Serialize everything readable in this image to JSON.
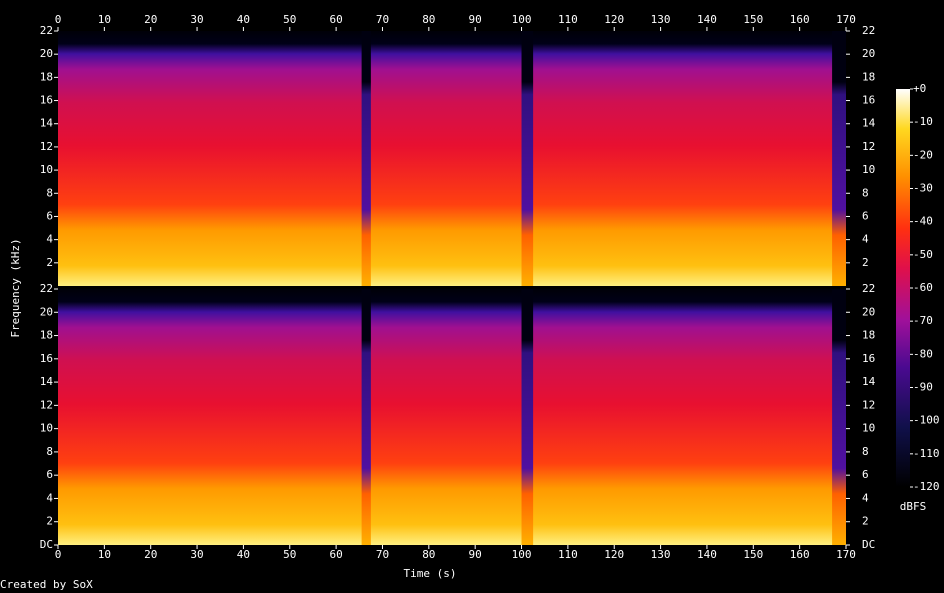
{
  "chart_data": {
    "type": "spectrogram",
    "x_label": "Time (s)",
    "y_label": "Frequency (kHz)",
    "colorbar_label": "dBFS",
    "footer": "Created by SoX",
    "xlim": [
      0,
      170
    ],
    "xticks": [
      0,
      10,
      20,
      30,
      40,
      50,
      60,
      70,
      80,
      90,
      100,
      110,
      120,
      130,
      140,
      150,
      160,
      170
    ],
    "channels": [
      {
        "ylim": [
          0,
          22
        ],
        "yticks": [
          2,
          4,
          6,
          8,
          10,
          12,
          14,
          16,
          18,
          20,
          22
        ]
      },
      {
        "ylim": [
          0,
          22
        ],
        "yticks": [
          {
            "value": 0,
            "label": "DC"
          },
          2,
          4,
          6,
          8,
          10,
          12,
          14,
          16,
          18,
          20,
          22
        ]
      }
    ],
    "zlim": [
      -120,
      0
    ],
    "zticks": [
      {
        "value": 0,
        "label": "+0"
      },
      -10,
      -20,
      -30,
      -40,
      -50,
      -60,
      -70,
      -80,
      -90,
      -100,
      -110,
      -120
    ]
  }
}
